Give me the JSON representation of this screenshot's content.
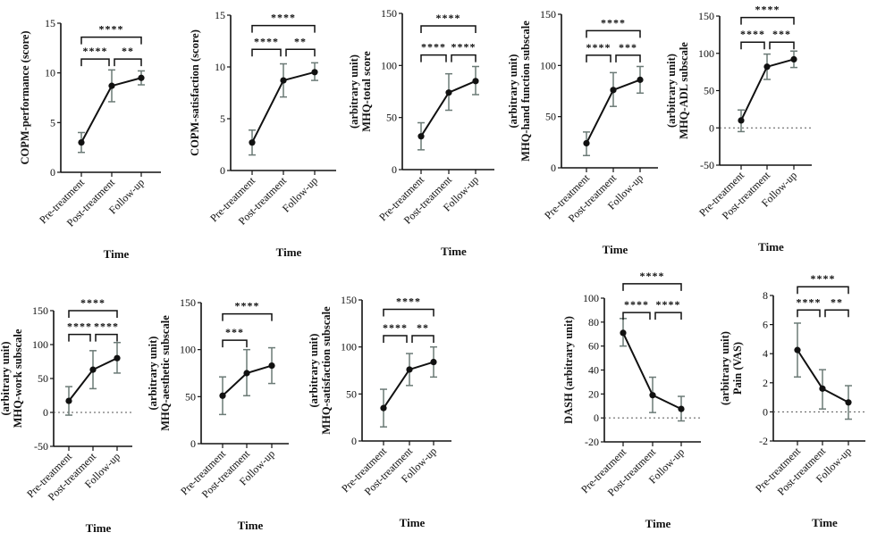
{
  "chart_data": [
    {
      "type": "line",
      "ylabel": [
        "COPM-performance (score)"
      ],
      "xlabel": "Time",
      "categories": [
        "Pre-treatment",
        "Post-treatment",
        "Follow-up"
      ],
      "ylim": [
        0,
        15
      ],
      "yticks": [
        0,
        5,
        10,
        15
      ],
      "values": [
        3,
        8.7,
        9.5
      ],
      "error_low": [
        2,
        7.1,
        8.8
      ],
      "error_high": [
        4,
        10.3,
        10.2
      ],
      "zero_line": false,
      "significance": [
        {
          "pair": [
            0,
            1
          ],
          "label": "****"
        },
        {
          "pair": [
            1,
            2
          ],
          "label": "**"
        },
        {
          "pair": [
            0,
            2
          ],
          "label": "****"
        }
      ]
    },
    {
      "type": "line",
      "ylabel": [
        "COPM-satisfaction (score)"
      ],
      "xlabel": "Time",
      "categories": [
        "Pre-treatment",
        "Post-treatment",
        "Follow-up"
      ],
      "ylim": [
        0,
        15
      ],
      "yticks": [
        0,
        5,
        10,
        15
      ],
      "values": [
        2.7,
        8.7,
        9.5
      ],
      "error_low": [
        1.5,
        7.1,
        8.7
      ],
      "error_high": [
        3.9,
        10.3,
        10.4
      ],
      "zero_line": false,
      "significance": [
        {
          "pair": [
            0,
            1
          ],
          "label": "****"
        },
        {
          "pair": [
            1,
            2
          ],
          "label": "**"
        },
        {
          "pair": [
            0,
            2
          ],
          "label": "****"
        }
      ]
    },
    {
      "type": "line",
      "ylabel": [
        "MHQ-total score",
        "(arbitrary unit)"
      ],
      "xlabel": "Time",
      "categories": [
        "Pre-treatment",
        "Post-treatment",
        "Follow-up"
      ],
      "ylim": [
        0,
        150
      ],
      "yticks": [
        0,
        50,
        100,
        150
      ],
      "values": [
        32,
        74,
        85
      ],
      "error_low": [
        19,
        57,
        72
      ],
      "error_high": [
        45,
        92,
        99
      ],
      "zero_line": false,
      "significance": [
        {
          "pair": [
            0,
            1
          ],
          "label": "****"
        },
        {
          "pair": [
            1,
            2
          ],
          "label": "****"
        },
        {
          "pair": [
            0,
            2
          ],
          "label": "****"
        }
      ]
    },
    {
      "type": "line",
      "ylabel": [
        "MHQ-hand function subscale",
        "(arbitrary unit)"
      ],
      "xlabel": "Time",
      "categories": [
        "Pre-treatment",
        "Post-treatment",
        "Follow-up"
      ],
      "ylim": [
        0,
        150
      ],
      "yticks": [
        0,
        50,
        100,
        150
      ],
      "values": [
        24,
        76,
        86
      ],
      "error_low": [
        12,
        60,
        73
      ],
      "error_high": [
        35,
        93,
        99
      ],
      "zero_line": false,
      "significance": [
        {
          "pair": [
            0,
            1
          ],
          "label": "****"
        },
        {
          "pair": [
            1,
            2
          ],
          "label": "***"
        },
        {
          "pair": [
            0,
            2
          ],
          "label": "****"
        }
      ]
    },
    {
      "type": "line",
      "ylabel": [
        "MHQ-ADL subscale",
        "(arbitrary unit)"
      ],
      "xlabel": "Time",
      "categories": [
        "Pre-treatment",
        "Post-treatment",
        "Follow-up"
      ],
      "ylim": [
        -50,
        150
      ],
      "yticks": [
        -50,
        0,
        50,
        100,
        150
      ],
      "values": [
        10,
        82,
        92
      ],
      "error_low": [
        -5,
        65,
        81
      ],
      "error_high": [
        24,
        99,
        103
      ],
      "zero_line": true,
      "significance": [
        {
          "pair": [
            0,
            1
          ],
          "label": "****"
        },
        {
          "pair": [
            1,
            2
          ],
          "label": "***"
        },
        {
          "pair": [
            0,
            2
          ],
          "label": "****"
        }
      ]
    },
    {
      "type": "line",
      "ylabel": [
        "MHQ-work subscale",
        "(arbitrary unit)"
      ],
      "xlabel": "Time",
      "categories": [
        "Pre-treatment",
        "Post-treatment",
        "Follow-up"
      ],
      "ylim": [
        -50,
        150
      ],
      "yticks": [
        -50,
        0,
        50,
        100,
        150
      ],
      "values": [
        17,
        63,
        80
      ],
      "error_low": [
        -4,
        35,
        58
      ],
      "error_high": [
        38,
        91,
        103
      ],
      "zero_line": true,
      "significance": [
        {
          "pair": [
            0,
            1
          ],
          "label": "****"
        },
        {
          "pair": [
            1,
            2
          ],
          "label": "****"
        },
        {
          "pair": [
            0,
            2
          ],
          "label": "****"
        }
      ]
    },
    {
      "type": "line",
      "ylabel": [
        "MHQ-aesthetic subscale",
        "(arbitrary unit)"
      ],
      "xlabel": "Time",
      "categories": [
        "Pre-treatment",
        "Post-treatment",
        "Follow-up"
      ],
      "ylim": [
        0,
        150
      ],
      "yticks": [
        0,
        50,
        100,
        150
      ],
      "values": [
        51,
        75,
        83
      ],
      "error_low": [
        31,
        51,
        64
      ],
      "error_high": [
        71,
        100,
        102
      ],
      "zero_line": false,
      "significance": [
        {
          "pair": [
            0,
            1
          ],
          "label": "***"
        },
        {
          "pair": [
            0,
            2
          ],
          "label": "****"
        }
      ]
    },
    {
      "type": "line",
      "ylabel": [
        "MHQ-satisfaction subscale",
        "(arbitrary unit)"
      ],
      "xlabel": "Time",
      "categories": [
        "Pre-treatment",
        "Post-treatment",
        "Follow-up"
      ],
      "ylim": [
        0,
        150
      ],
      "yticks": [
        0,
        50,
        100,
        150
      ],
      "values": [
        35,
        76,
        84
      ],
      "error_low": [
        15,
        59,
        68
      ],
      "error_high": [
        55,
        93,
        100
      ],
      "zero_line": false,
      "significance": [
        {
          "pair": [
            0,
            1
          ],
          "label": "****"
        },
        {
          "pair": [
            1,
            2
          ],
          "label": "**"
        },
        {
          "pair": [
            0,
            2
          ],
          "label": "****"
        }
      ]
    },
    {
      "type": "line",
      "ylabel": [
        "DASH (arbitrary unit)"
      ],
      "xlabel": "Time",
      "categories": [
        "Pre-treatment",
        "Post-treatment",
        "Follow-up"
      ],
      "ylim": [
        -20,
        100
      ],
      "yticks": [
        -20,
        0,
        20,
        40,
        60,
        80,
        100
      ],
      "values": [
        71,
        19,
        7.5
      ],
      "error_low": [
        60,
        4.5,
        -2.5
      ],
      "error_high": [
        83,
        34,
        18
      ],
      "zero_line": true,
      "significance": [
        {
          "pair": [
            0,
            1
          ],
          "label": "****"
        },
        {
          "pair": [
            1,
            2
          ],
          "label": "****"
        },
        {
          "pair": [
            0,
            2
          ],
          "label": "****"
        }
      ]
    },
    {
      "type": "line",
      "ylabel": [
        "Pain (VAS)",
        "(arbitrary unit)"
      ],
      "xlabel": "Time",
      "categories": [
        "Pre-treatment",
        "Post-treatment",
        "Follow-up"
      ],
      "ylim": [
        -2,
        8
      ],
      "yticks": [
        -2,
        0,
        2,
        4,
        6,
        8
      ],
      "values": [
        4.25,
        1.6,
        0.65
      ],
      "error_low": [
        2.4,
        0.2,
        -0.5
      ],
      "error_high": [
        6.1,
        2.9,
        1.8
      ],
      "zero_line": true,
      "significance": [
        {
          "pair": [
            0,
            1
          ],
          "label": "****"
        },
        {
          "pair": [
            1,
            2
          ],
          "label": "**"
        },
        {
          "pair": [
            0,
            2
          ],
          "label": "****"
        }
      ]
    }
  ]
}
